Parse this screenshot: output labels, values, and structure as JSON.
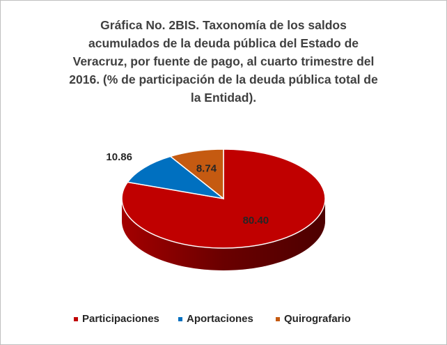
{
  "chart_data": {
    "type": "pie3d",
    "title": "Gráfica No. 2BIS. Taxonomía de los saldos acumulados de la deuda pública del Estado de Veracruz, por fuente de pago, al cuarto trimestre del 2016. (% de participación de la deuda pública total de la Entidad).",
    "categories": [
      "Participaciones",
      "Aportaciones",
      "Quirografario"
    ],
    "values": [
      80.4,
      10.86,
      8.74
    ],
    "value_labels": [
      "80.40",
      "10.86",
      "8.74"
    ],
    "colors": [
      "#c00000",
      "#0070c0",
      "#c55a11"
    ],
    "legend": "bottom"
  }
}
